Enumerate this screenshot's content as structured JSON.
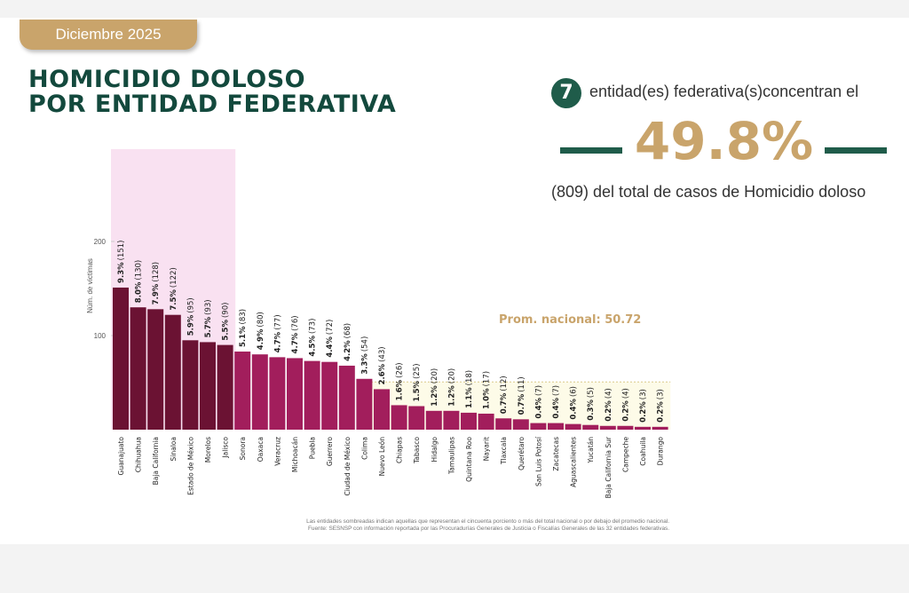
{
  "header": {
    "badge": "Diciembre 2025",
    "title_line1": "HOMICIDIO DOLOSO",
    "title_line2": "POR ENTIDAD FEDERATIVA"
  },
  "kpi": {
    "count": "7",
    "line1": "entidad(es) federativa(s)concentran el",
    "percent": "49.8%",
    "line2": "(809) del total de casos de Homicidio doloso"
  },
  "colors": {
    "top_bar": "#6b1233",
    "bar": "#a21e5c",
    "highlight": "#f9e1f1",
    "below_avg": "#fdfbe8",
    "green": "#1f5c4a",
    "gold": "#c9a46b"
  },
  "chart_data": {
    "type": "bar",
    "ylabel": "Núm. de víctimas",
    "ylim": [
      0,
      300
    ],
    "yticks": [
      100,
      200
    ],
    "average_label": "Prom. nacional: 50.72",
    "average_value": 50.72,
    "highlighted_count": 7,
    "categories": [
      "Guanajuato",
      "Chihuahua",
      "Baja California",
      "Sinaloa",
      "Estado de México",
      "Morelos",
      "Jalisco",
      "Sonora",
      "Oaxaca",
      "Veracruz",
      "Michoacán",
      "Puebla",
      "Guerrero",
      "Ciudad de México",
      "Colima",
      "Nuevo León",
      "Chiapas",
      "Tabasco",
      "Hidalgo",
      "Tamaulipas",
      "Quintana Roo",
      "Nayarit",
      "Tlaxcala",
      "Querétaro",
      "San Luis Potosí",
      "Zacatecas",
      "Aguascalientes",
      "Yucatán",
      "Baja California Sur",
      "Campeche",
      "Coahuila",
      "Durango"
    ],
    "values": [
      151,
      130,
      128,
      122,
      95,
      93,
      90,
      83,
      80,
      77,
      76,
      73,
      72,
      68,
      54,
      43,
      26,
      25,
      20,
      20,
      18,
      17,
      12,
      11,
      7,
      7,
      6,
      5,
      4,
      4,
      3,
      3
    ],
    "pct_labels": [
      "9.3%",
      "8.0%",
      "7.9%",
      "7.5%",
      "5.9%",
      "5.7%",
      "5.5%",
      "5.1%",
      "4.9%",
      "4.7%",
      "4.7%",
      "4.5%",
      "4.4%",
      "4.2%",
      "3.3%",
      "2.6%",
      "1.6%",
      "1.5%",
      "1.2%",
      "1.2%",
      "1.1%",
      "1.0%",
      "0.7%",
      "0.7%",
      "0.4%",
      "0.4%",
      "0.4%",
      "0.3%",
      "0.2%",
      "0.2%",
      "0.2%",
      "0.2%"
    ],
    "count_labels": [
      "(151)",
      "(130)",
      "(128)",
      "(122)",
      "(95)",
      "(93)",
      "(90)",
      "(83)",
      "(80)",
      "(77)",
      "(76)",
      "(73)",
      "(72)",
      "(68)",
      "(54)",
      "(43)",
      "(26)",
      "(25)",
      "(20)",
      "(20)",
      "(18)",
      "(17)",
      "(12)",
      "(11)",
      "(7)",
      "(7)",
      "(6)",
      "(5)",
      "(4)",
      "(4)",
      "(3)",
      "(3)"
    ]
  },
  "footnote": {
    "line1": "Las entidades sombreadas indican aquellas que representan el cincuenta porciento o más del total nacional o por debajo del promedio nacional.",
    "line2": "Fuente: SESNSP con información reportada por las Procuradurías Generales de Justicia o Fiscalías Generales de las 32 entidades federativas."
  }
}
